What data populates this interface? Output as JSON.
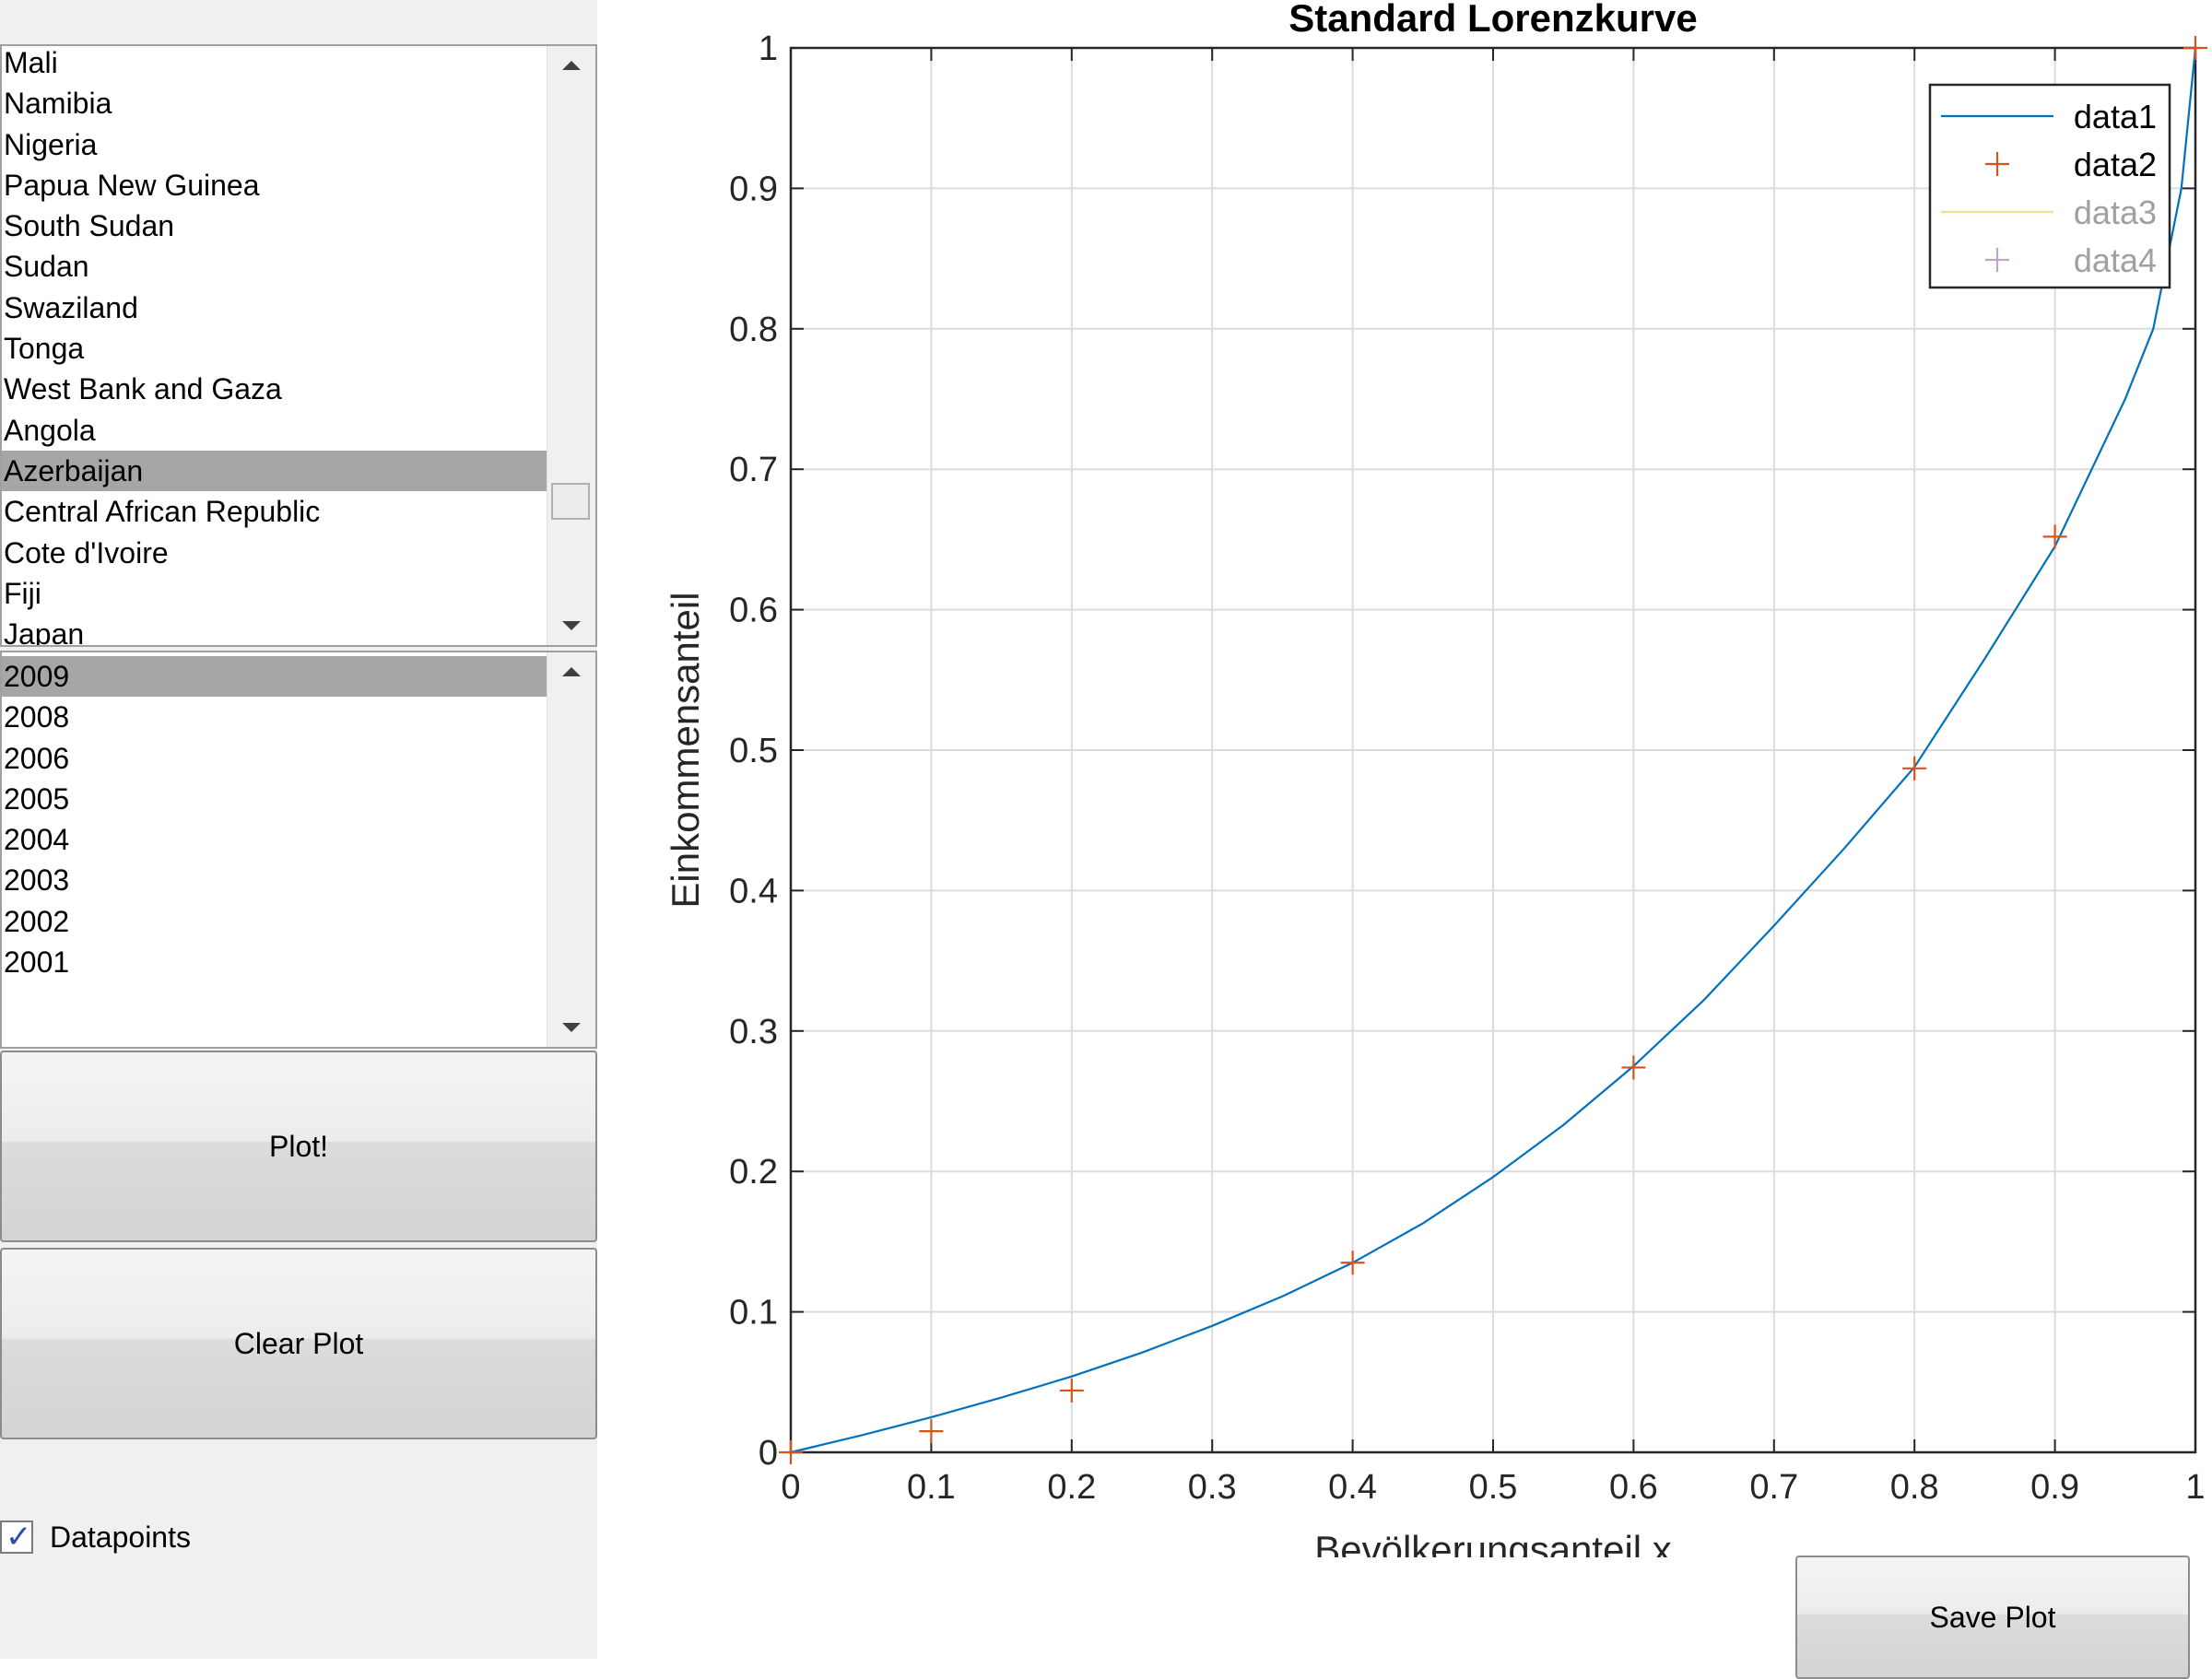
{
  "country_list": {
    "items": [
      "Mali",
      "Namibia",
      "Nigeria",
      "Papua New Guinea",
      "South Sudan",
      "Sudan",
      "Swaziland",
      "Tonga",
      "West Bank and Gaza",
      "Angola",
      "Azerbaijan",
      "Central African Republic",
      "Cote d'Ivoire",
      "Fiji",
      "Japan"
    ],
    "selected": "Azerbaijan"
  },
  "year_list": {
    "items": [
      "2009",
      "2008",
      "2006",
      "2005",
      "2004",
      "2003",
      "2002",
      "2001"
    ],
    "selected": "2009"
  },
  "buttons": {
    "plot": "Plot!",
    "clear": "Clear Plot",
    "save": "Save Plot"
  },
  "checkbox": {
    "label": "Datapoints",
    "checked": true
  },
  "colors": {
    "curve": "#0072bd",
    "points": "#d95319",
    "series3": "#edb120",
    "series4": "#7e2f8e"
  },
  "chart_data": {
    "type": "line",
    "title": "Standard Lorenzkurve",
    "xlabel": "Bevölkerungsanteil x",
    "ylabel": "Einkommensanteil",
    "xlim": [
      0,
      1
    ],
    "ylim": [
      0,
      1
    ],
    "xticks": [
      "0",
      "0.1",
      "0.2",
      "0.3",
      "0.4",
      "0.5",
      "0.6",
      "0.7",
      "0.8",
      "0.9",
      "1"
    ],
    "yticks": [
      "0",
      "0.1",
      "0.2",
      "0.3",
      "0.4",
      "0.5",
      "0.6",
      "0.7",
      "0.8",
      "0.9",
      "1"
    ],
    "grid": true,
    "legend_position": "top-right",
    "series": [
      {
        "name": "data1",
        "style": "line",
        "x": [
          0,
          0.05,
          0.1,
          0.15,
          0.2,
          0.25,
          0.3,
          0.35,
          0.4,
          0.45,
          0.5,
          0.55,
          0.6,
          0.65,
          0.7,
          0.75,
          0.8,
          0.85,
          0.9,
          0.95,
          0.97,
          0.99,
          1
        ],
        "y": [
          0,
          0.012,
          0.025,
          0.039,
          0.054,
          0.071,
          0.09,
          0.111,
          0.135,
          0.163,
          0.196,
          0.233,
          0.275,
          0.322,
          0.375,
          0.43,
          0.488,
          0.565,
          0.645,
          0.75,
          0.8,
          0.9,
          1
        ]
      },
      {
        "name": "data2",
        "style": "markers",
        "x": [
          0,
          0.1,
          0.2,
          0.4,
          0.6,
          0.8,
          0.9,
          1
        ],
        "y": [
          0,
          0.015,
          0.044,
          0.135,
          0.274,
          0.487,
          0.652,
          1
        ]
      },
      {
        "name": "data3",
        "style": "line",
        "x": [],
        "y": []
      },
      {
        "name": "data4",
        "style": "markers",
        "x": [],
        "y": []
      }
    ]
  }
}
